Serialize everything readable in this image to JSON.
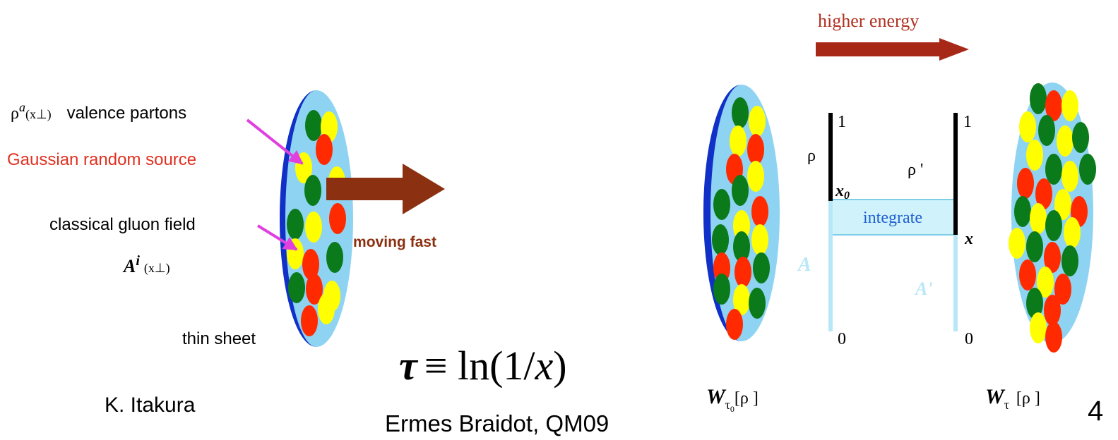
{
  "header": {
    "arrow_label": "higher energy"
  },
  "left_diagram": {
    "rho_symbol": "ρ",
    "rho_superscript": "a",
    "rho_argument": "(x⊥)",
    "valence_label": "valence partons",
    "source_label": "Gaussian random source",
    "field_label": "classical gluon field",
    "field_symbol": "A",
    "field_superscript": "i",
    "field_argument": "(x⊥)",
    "motion_label": "moving fast",
    "sheet_label": "thin sheet",
    "credit": "K. Itakura"
  },
  "formula": {
    "lhs": "τ",
    "rhs": "≡ ln(1/",
    "variable": "x",
    "close": ")"
  },
  "citation": "Ermes Braidot, QM09",
  "right_diagram": {
    "rho_before": "ρ",
    "top_before": "1",
    "x_before": "x",
    "x_before_subscript": "0",
    "integrate_label": "integrate",
    "field_before": "A",
    "bottom_before": "0",
    "rho_after": "ρ '",
    "top_after": "1",
    "x_after": "x",
    "field_after": "A'",
    "bottom_after": "0",
    "weight_before": {
      "symbol": "W",
      "subscript": "τ",
      "subsubscript": "0",
      "argument": "[ρ ]"
    },
    "weight_after": {
      "symbol": "W",
      "subscript": "τ",
      "argument": "[ρ ]"
    }
  },
  "page_number": "4"
}
